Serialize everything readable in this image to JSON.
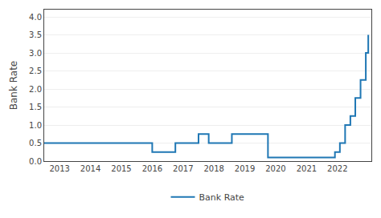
{
  "chart_data": {
    "type": "line",
    "ylabel": "Bank Rate",
    "x": [
      2012.5,
      2016.0,
      2016.0,
      2016.75,
      2016.75,
      2017.5,
      2017.5,
      2017.83,
      2017.83,
      2018.58,
      2018.58,
      2019.75,
      2019.75,
      2020.17,
      2020.17,
      2021.92,
      2021.92,
      2022.08,
      2022.08,
      2022.25,
      2022.25,
      2022.42,
      2022.42,
      2022.58,
      2022.58,
      2022.75,
      2022.75,
      2022.92,
      2022.92,
      2023.0
    ],
    "series": [
      {
        "name": "Bank Rate",
        "line_style": "step",
        "values": [
          0.5,
          0.5,
          0.25,
          0.25,
          0.5,
          0.5,
          0.75,
          0.75,
          0.5,
          0.5,
          0.75,
          0.75,
          0.1,
          0.1,
          0.1,
          0.1,
          0.25,
          0.25,
          0.5,
          0.5,
          1.0,
          1.0,
          1.25,
          1.25,
          1.75,
          1.75,
          2.25,
          2.25,
          3.0,
          3.5
        ]
      }
    ],
    "xlim": [
      2012.5,
      2023.1
    ],
    "xticks": [
      2013,
      2014,
      2015,
      2016,
      2017,
      2018,
      2019,
      2020,
      2021,
      2022
    ],
    "ylim": [
      0,
      4.2
    ],
    "yticks": [
      {
        "value": 0,
        "label": "0.0"
      },
      0.5,
      {
        "value": 1,
        "label": "1.0"
      },
      1.5,
      {
        "value": 2,
        "label": "2.0"
      },
      2.5,
      {
        "value": 3,
        "label": "3.0"
      },
      3.5,
      {
        "value": 4,
        "label": "4.0"
      }
    ],
    "grid": "y",
    "legend": "bottom"
  }
}
